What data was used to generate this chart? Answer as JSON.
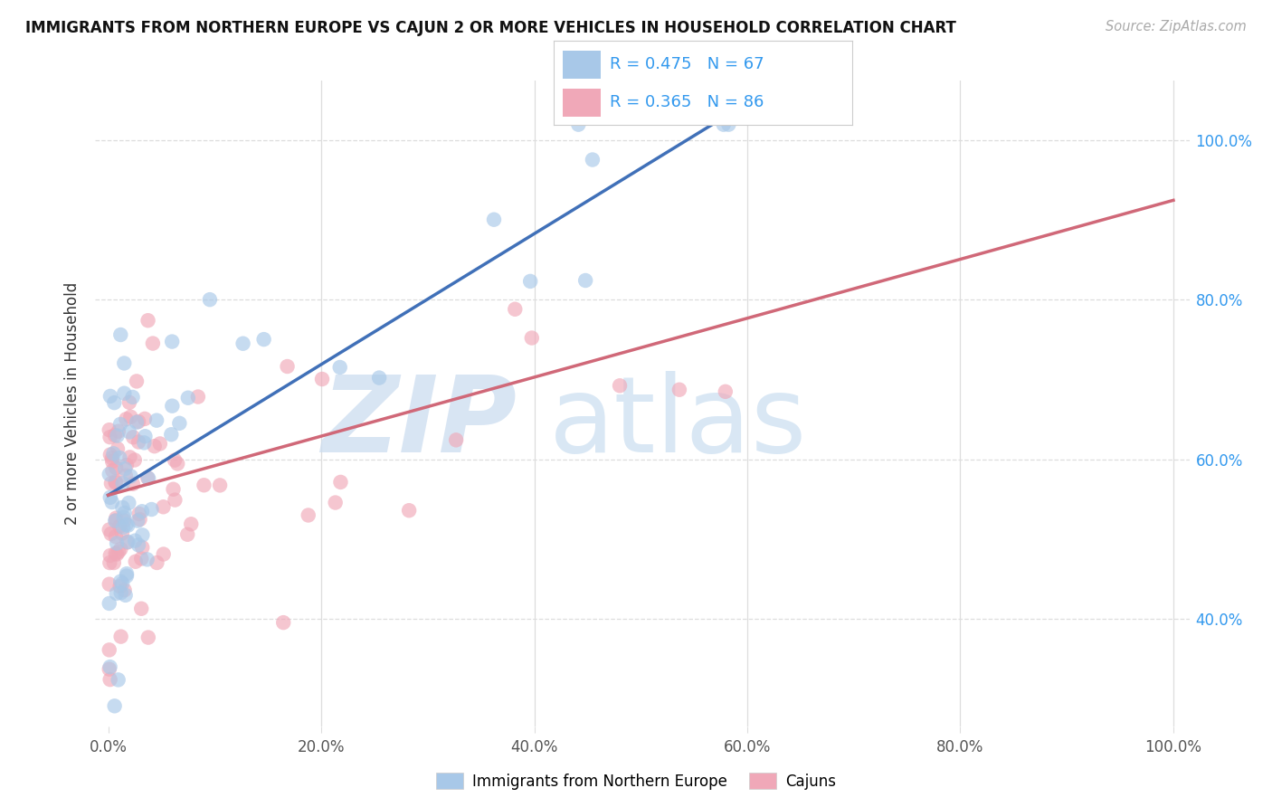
{
  "title": "IMMIGRANTS FROM NORTHERN EUROPE VS CAJUN 2 OR MORE VEHICLES IN HOUSEHOLD CORRELATION CHART",
  "source": "Source: ZipAtlas.com",
  "ylabel": "2 or more Vehicles in Household",
  "blue_R": 0.475,
  "blue_N": 67,
  "pink_R": 0.365,
  "pink_N": 86,
  "xtick_labels": [
    "0.0%",
    "20.0%",
    "40.0%",
    "60.0%",
    "80.0%",
    "100.0%"
  ],
  "xtick_vals": [
    0.0,
    0.2,
    0.4,
    0.6,
    0.8,
    1.0
  ],
  "ytick_labels": [
    "40.0%",
    "60.0%",
    "80.0%",
    "100.0%"
  ],
  "ytick_vals": [
    0.4,
    0.6,
    0.8,
    1.0
  ],
  "blue_fill": "#a8c8e8",
  "pink_fill": "#f0a8b8",
  "blue_line": "#4070b8",
  "pink_line": "#d06878",
  "right_tick_color": "#3399ee",
  "legend_label_blue": "Immigrants from Northern Europe",
  "legend_label_pink": "Cajuns",
  "legend_text_color": "#3399ee",
  "watermark_zip_color": "#ccddf0",
  "watermark_atlas_color": "#c0d8ee",
  "grid_color": "#dddddd",
  "title_color": "#111111",
  "source_color": "#aaaaaa",
  "blue_line_intercept": 0.555,
  "blue_line_slope": 0.82,
  "pink_line_intercept": 0.555,
  "pink_line_slope": 0.37
}
